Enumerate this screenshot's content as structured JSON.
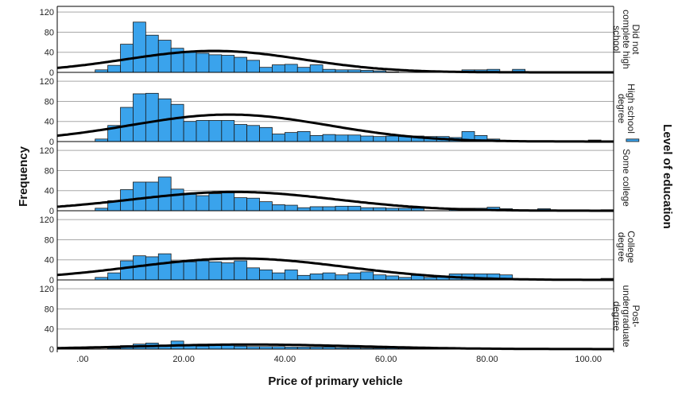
{
  "chart_data": {
    "type": "histogram",
    "xlabel": "Price of primary vehicle",
    "ylabel": "Frequency",
    "panel_axis_title": "Level of education",
    "xlim": [
      -5,
      105
    ],
    "ylim": [
      0,
      125
    ],
    "x_ticks": [
      0,
      20,
      40,
      60,
      80,
      100
    ],
    "x_tick_labels": [
      ".00",
      "20.00",
      "40.00",
      "60.00",
      "80.00",
      "100.00"
    ],
    "y_ticks": [
      0,
      40,
      80,
      120
    ],
    "y_tick_labels": [
      "0",
      "40",
      "80",
      "120"
    ],
    "bin_start": 2.5,
    "bin_width": 2.5,
    "bar_color": "#3aa3ec",
    "curve_color": "#000000",
    "grid": true,
    "panels": [
      {
        "label": "Did not complete high school",
        "label_lines": [
          "Did not",
          "complete high",
          "school"
        ],
        "counts": [
          5,
          14,
          56,
          100,
          74,
          64,
          48,
          40,
          38,
          35,
          34,
          30,
          24,
          10,
          15,
          16,
          10,
          15,
          6,
          5,
          5,
          4,
          3,
          1,
          0,
          0,
          0,
          0,
          0,
          5,
          5,
          6,
          0,
          6,
          0
        ],
        "normal_curve": {
          "mean": 26,
          "sd": 17.5,
          "n": 750
        }
      },
      {
        "label": "High school degree",
        "label_lines": [
          "High school",
          "degree"
        ],
        "counts": [
          5,
          32,
          68,
          95,
          96,
          85,
          74,
          40,
          42,
          42,
          42,
          34,
          32,
          28,
          15,
          18,
          20,
          12,
          14,
          13,
          13,
          11,
          10,
          11,
          10,
          11,
          10,
          10,
          8,
          20,
          12,
          5,
          0,
          0,
          0,
          0,
          0,
          0,
          0,
          3,
          0,
          0,
          5,
          0,
          0
        ],
        "normal_curve": {
          "mean": 29,
          "sd": 19.5,
          "n": 1050
        }
      },
      {
        "label": "Some college",
        "label_lines": [
          "Some college"
        ],
        "counts": [
          5,
          20,
          42,
          57,
          57,
          67,
          43,
          33,
          30,
          34,
          36,
          26,
          25,
          18,
          12,
          11,
          6,
          8,
          8,
          9,
          9,
          6,
          6,
          5,
          5,
          5,
          0,
          0,
          5,
          5,
          5,
          7,
          4,
          0,
          0,
          4,
          0,
          0,
          0,
          0,
          2,
          0,
          0,
          0,
          0
        ],
        "normal_curve": {
          "mean": 30,
          "sd": 20,
          "n": 750
        }
      },
      {
        "label": "College degree",
        "label_lines": [
          "College",
          "degree"
        ],
        "counts": [
          5,
          14,
          38,
          48,
          46,
          52,
          38,
          36,
          38,
          36,
          34,
          38,
          24,
          20,
          14,
          20,
          9,
          12,
          14,
          10,
          14,
          16,
          10,
          8,
          5,
          9,
          5,
          8,
          12,
          12,
          12,
          12,
          10,
          0,
          0,
          0,
          0,
          0,
          0,
          0,
          3,
          0,
          0,
          0,
          0
        ],
        "normal_curve": {
          "mean": 31,
          "sd": 21,
          "n": 900
        }
      },
      {
        "label": "Post-undergraduate degree",
        "label_lines": [
          "Post-",
          "undergraduate",
          "degree"
        ],
        "counts": [
          0,
          2,
          7,
          10,
          12,
          8,
          16,
          7,
          6,
          7,
          8,
          6,
          5,
          5,
          5,
          4,
          4,
          4,
          4,
          3,
          3,
          2,
          2,
          2,
          2,
          2,
          3,
          2,
          2,
          2,
          2,
          0,
          1,
          1,
          1,
          0,
          0,
          0,
          0,
          0
        ],
        "normal_curve": {
          "mean": 33,
          "sd": 22,
          "n": 200
        }
      }
    ]
  }
}
